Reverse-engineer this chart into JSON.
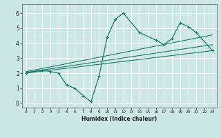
{
  "title": "",
  "xlabel": "Humidex (Indice chaleur)",
  "ylabel": "",
  "bg_color": "#cce8e4",
  "grid_color": "#ffffff",
  "line_color": "#1a7a6e",
  "xlim": [
    -0.5,
    23.5
  ],
  "ylim": [
    -0.3,
    6.6
  ],
  "xticks": [
    0,
    1,
    2,
    3,
    4,
    5,
    6,
    7,
    8,
    9,
    10,
    11,
    12,
    13,
    14,
    15,
    16,
    17,
    18,
    19,
    20,
    21,
    22,
    23
  ],
  "yticks": [
    0,
    1,
    2,
    3,
    4,
    5,
    6
  ],
  "data_x": [
    0,
    2,
    3,
    4,
    5,
    6,
    7,
    8,
    9,
    10,
    11,
    12,
    14,
    16,
    17,
    18,
    19,
    20,
    21,
    23
  ],
  "data_y": [
    2.0,
    2.2,
    2.1,
    2.0,
    1.2,
    1.0,
    0.5,
    0.1,
    1.8,
    4.4,
    5.6,
    6.0,
    4.7,
    4.2,
    3.9,
    4.3,
    5.35,
    5.1,
    4.7,
    3.5
  ],
  "trend_line1_x": [
    0,
    23
  ],
  "trend_line1_y": [
    2.0,
    3.5
  ],
  "trend_line2_x": [
    0,
    23
  ],
  "trend_line2_y": [
    2.05,
    3.9
  ],
  "trend_line3_x": [
    0,
    23
  ],
  "trend_line3_y": [
    2.1,
    4.55
  ]
}
